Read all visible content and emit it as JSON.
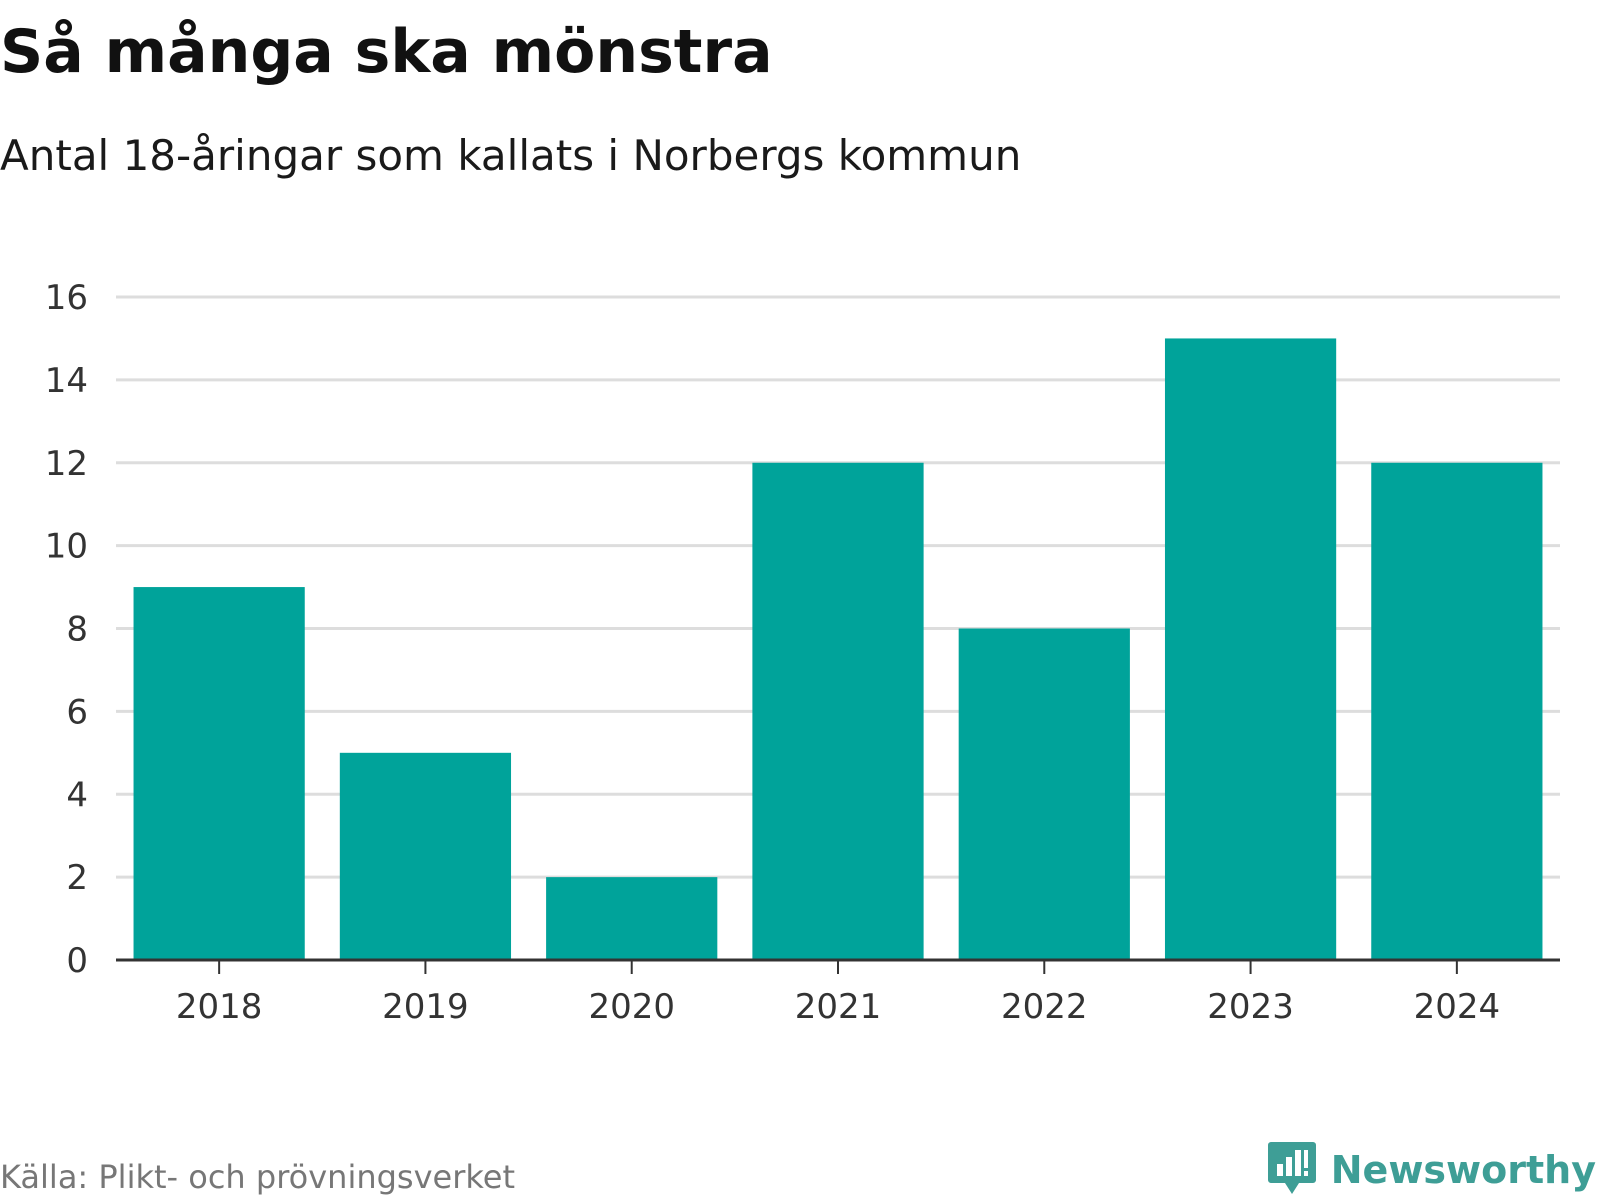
{
  "header": {
    "title": "Så många ska mönstra",
    "subtitle": "Antal 18-åringar som kallats i Norbergs kommun"
  },
  "footer": {
    "source": "Källa: Plikt- och prövningsverket",
    "brand": "Newsworthy",
    "brand_icon": "newsworthy-logo-icon"
  },
  "colors": {
    "bar": "#00a39a",
    "grid": "#dddddd",
    "axis": "#333333",
    "brand": "#3e9e96"
  },
  "chart_data": {
    "type": "bar",
    "title": "Så många ska mönstra",
    "subtitle": "Antal 18-åringar som kallats i Norbergs kommun",
    "categories": [
      "2018",
      "2019",
      "2020",
      "2021",
      "2022",
      "2023",
      "2024"
    ],
    "values": [
      9,
      5,
      2,
      12,
      8,
      15,
      12
    ],
    "xlabel": "",
    "ylabel": "",
    "ylim": [
      0,
      16
    ],
    "yticks": [
      0,
      2,
      4,
      6,
      8,
      10,
      12,
      14,
      16
    ],
    "grid": true,
    "legend": "none"
  }
}
